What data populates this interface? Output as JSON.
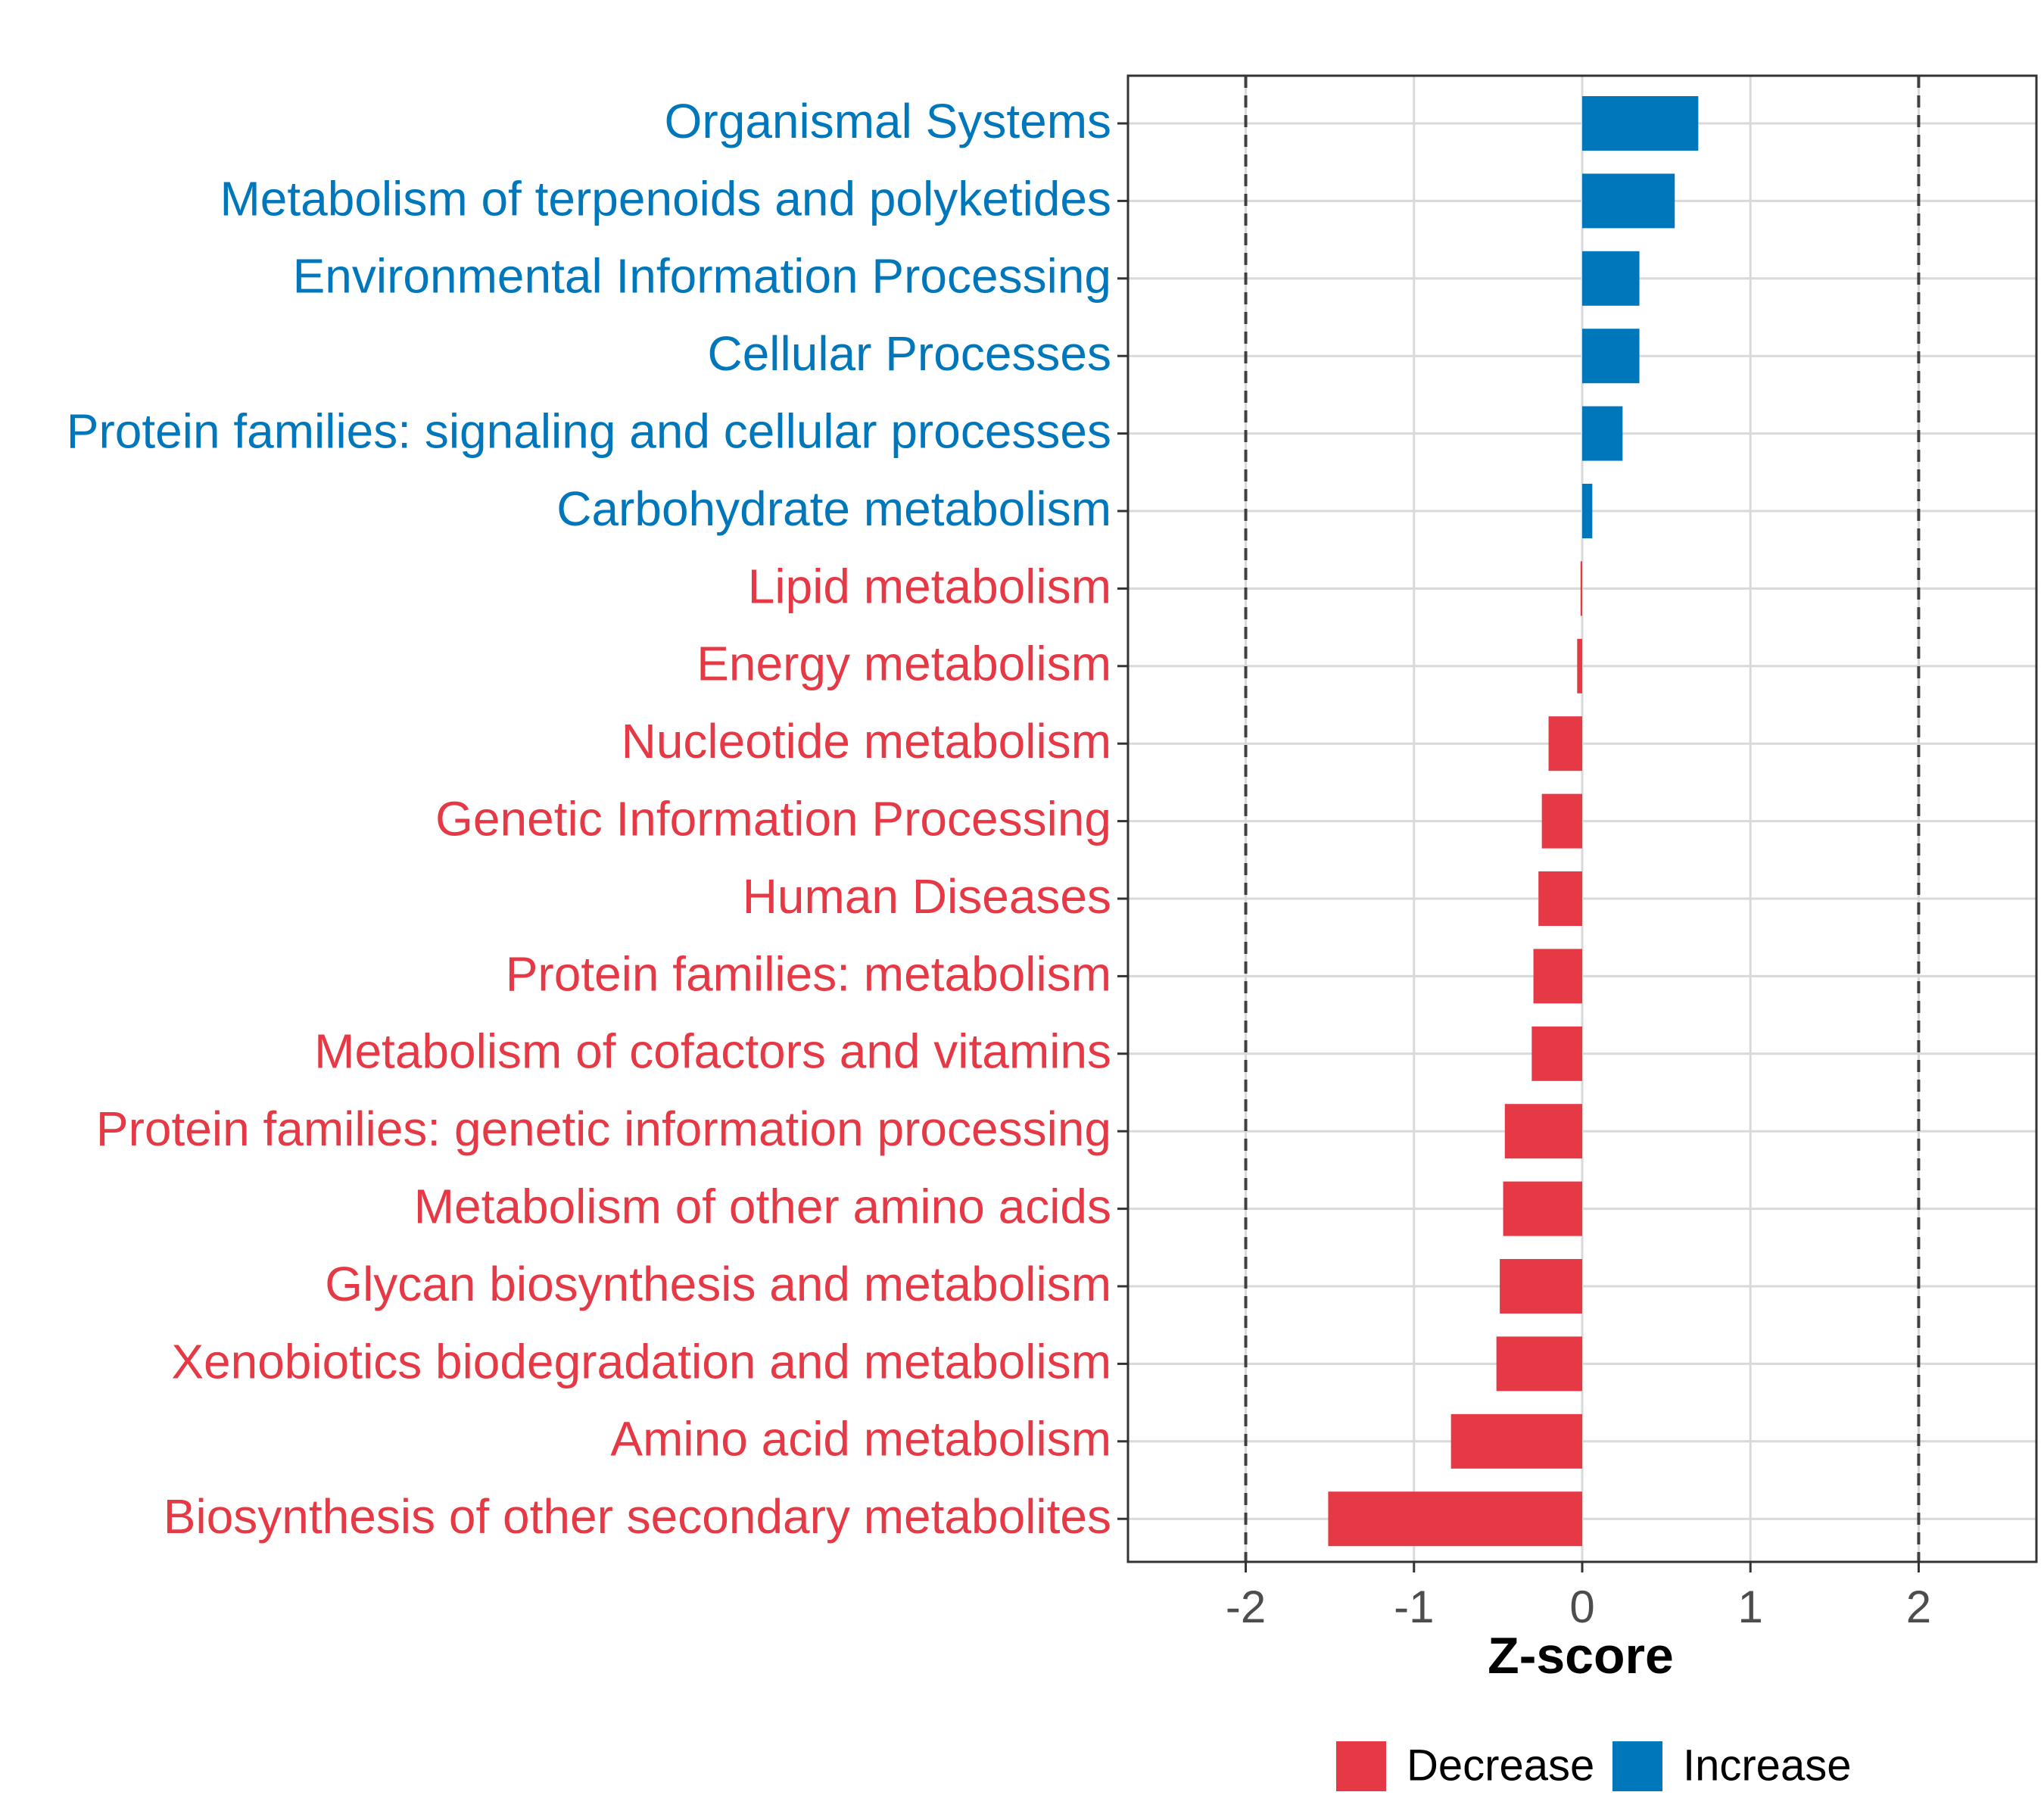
{
  "chart_data": {
    "type": "bar",
    "orientation": "horizontal",
    "xlabel": "Z-score",
    "ylabel": "",
    "xlim": [
      -2.7,
      2.7
    ],
    "x_ticks": [
      -2,
      -1,
      0,
      1,
      2
    ],
    "x_tick_labels": [
      "-2",
      "-1",
      "0",
      "1",
      "2"
    ],
    "reference_lines": [
      -2,
      2
    ],
    "grid": true,
    "colors": {
      "Decrease": "#E63946",
      "Increase": "#0077BB"
    },
    "categories": [
      "Organismal Systems",
      "Metabolism of terpenoids and polyketides",
      "Environmental Information Processing",
      "Cellular Processes",
      "Protein families: signaling and cellular processes",
      "Carbohydrate metabolism",
      "Lipid metabolism",
      "Energy metabolism",
      "Nucleotide metabolism",
      "Genetic Information Processing",
      "Human Diseases",
      "Protein families: metabolism",
      "Metabolism of cofactors and vitamins",
      "Protein families: genetic information processing",
      "Metabolism of other amino acids",
      "Glycan biosynthesis and metabolism",
      "Xenobiotics biodegradation and metabolism",
      "Amino acid metabolism",
      "Biosynthesis of other secondary metabolites"
    ],
    "values": [
      0.69,
      0.55,
      0.34,
      0.34,
      0.24,
      0.06,
      -0.01,
      -0.03,
      -0.2,
      -0.24,
      -0.26,
      -0.29,
      -0.3,
      -0.46,
      -0.47,
      -0.49,
      -0.51,
      -0.78,
      -1.51
    ],
    "groups": [
      "Increase",
      "Increase",
      "Increase",
      "Increase",
      "Increase",
      "Increase",
      "Decrease",
      "Decrease",
      "Decrease",
      "Decrease",
      "Decrease",
      "Decrease",
      "Decrease",
      "Decrease",
      "Decrease",
      "Decrease",
      "Decrease",
      "Decrease",
      "Decrease"
    ],
    "legend": {
      "position": "bottom",
      "entries": [
        {
          "label": "Decrease",
          "group": "Decrease"
        },
        {
          "label": "Increase",
          "group": "Increase"
        }
      ]
    }
  }
}
